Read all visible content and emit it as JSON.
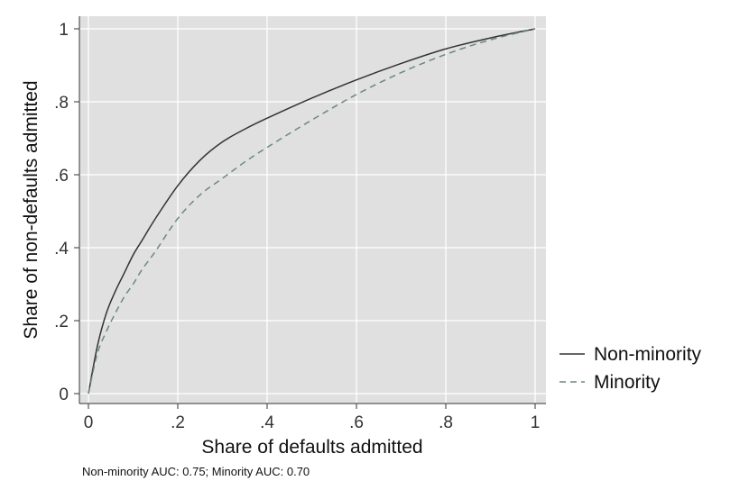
{
  "chart_data": {
    "type": "line",
    "xlabel": "Share of defaults admitted",
    "ylabel": "Share of non-defaults admitted",
    "xlim": [
      0,
      1
    ],
    "ylim": [
      0,
      1
    ],
    "xticks": [
      0,
      0.2,
      0.4,
      0.6,
      0.8,
      1
    ],
    "xtick_labels": [
      "0",
      ".2",
      ".4",
      ".6",
      ".8",
      "1"
    ],
    "yticks": [
      0,
      0.2,
      0.4,
      0.6,
      0.8,
      1
    ],
    "ytick_labels": [
      "0",
      ".2",
      ".4",
      ".6",
      ".8",
      "1"
    ],
    "grid": true,
    "legend_position": "right",
    "note": "Non-minority AUC:  0.75; Minority AUC:  0.70",
    "series": [
      {
        "name": "Non-minority",
        "color": "#333333",
        "style": "solid",
        "x": [
          0,
          0.02,
          0.04,
          0.06,
          0.08,
          0.1,
          0.12,
          0.15,
          0.2,
          0.25,
          0.3,
          0.35,
          0.4,
          0.5,
          0.6,
          0.7,
          0.8,
          0.9,
          1
        ],
        "y": [
          0,
          0.13,
          0.22,
          0.28,
          0.33,
          0.38,
          0.42,
          0.48,
          0.57,
          0.64,
          0.69,
          0.725,
          0.755,
          0.81,
          0.86,
          0.905,
          0.945,
          0.975,
          1
        ]
      },
      {
        "name": "Minority",
        "color": "#6a8a7e",
        "style": "dashed",
        "x": [
          0,
          0.02,
          0.04,
          0.06,
          0.08,
          0.1,
          0.12,
          0.15,
          0.2,
          0.25,
          0.3,
          0.35,
          0.4,
          0.5,
          0.6,
          0.7,
          0.8,
          0.9,
          1
        ],
        "y": [
          0,
          0.11,
          0.17,
          0.22,
          0.265,
          0.3,
          0.34,
          0.39,
          0.48,
          0.545,
          0.59,
          0.635,
          0.675,
          0.75,
          0.82,
          0.88,
          0.93,
          0.97,
          1
        ]
      }
    ]
  }
}
